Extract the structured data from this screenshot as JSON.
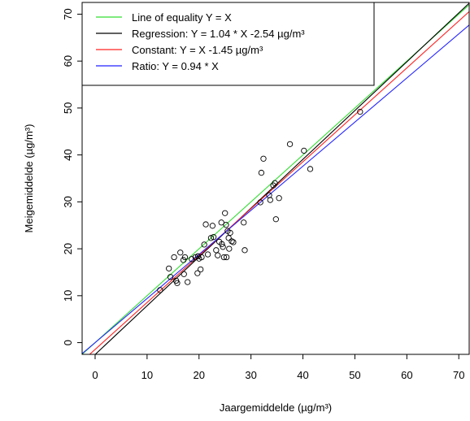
{
  "chart_data": {
    "type": "scatter",
    "xlabel": "Jaargemiddelde (µg/m³)",
    "ylabel": "Meigemiddelde (µg/m³)",
    "xlim": [
      -2.5,
      72
    ],
    "ylim": [
      -2.5,
      72.5
    ],
    "x_ticks": [
      0,
      10,
      20,
      30,
      40,
      50,
      60,
      70
    ],
    "y_ticks": [
      0,
      10,
      20,
      30,
      40,
      50,
      60,
      70
    ],
    "grid": false,
    "legend_position": "top-left",
    "points": [
      [
        12.5,
        11.2
      ],
      [
        14.2,
        15.8
      ],
      [
        14.5,
        14.0
      ],
      [
        15.2,
        18.2
      ],
      [
        15.6,
        13.2
      ],
      [
        15.8,
        12.7
      ],
      [
        16.4,
        19.2
      ],
      [
        17.0,
        17.6
      ],
      [
        17.3,
        18.2
      ],
      [
        17.1,
        14.6
      ],
      [
        17.8,
        12.9
      ],
      [
        18.6,
        17.8
      ],
      [
        19.3,
        18.2
      ],
      [
        19.8,
        18.4
      ],
      [
        20.0,
        17.9
      ],
      [
        19.7,
        14.8
      ],
      [
        20.3,
        15.6
      ],
      [
        20.5,
        18.2
      ],
      [
        21.0,
        20.9
      ],
      [
        21.3,
        25.2
      ],
      [
        21.7,
        18.8
      ],
      [
        22.3,
        22.3
      ],
      [
        22.6,
        24.9
      ],
      [
        22.8,
        22.5
      ],
      [
        23.3,
        19.7
      ],
      [
        23.6,
        18.6
      ],
      [
        23.9,
        21.5
      ],
      [
        24.4,
        21.0
      ],
      [
        24.3,
        25.6
      ],
      [
        24.6,
        20.4
      ],
      [
        24.8,
        18.2
      ],
      [
        25.0,
        27.6
      ],
      [
        25.2,
        25.1
      ],
      [
        25.5,
        23.8
      ],
      [
        25.7,
        22.3
      ],
      [
        25.8,
        20.0
      ],
      [
        26.0,
        23.4
      ],
      [
        26.3,
        21.6
      ],
      [
        26.6,
        21.4
      ],
      [
        25.3,
        18.2
      ],
      [
        28.6,
        25.6
      ],
      [
        28.8,
        19.7
      ],
      [
        31.8,
        29.9
      ],
      [
        32.0,
        36.2
      ],
      [
        32.4,
        39.2
      ],
      [
        33.5,
        31.4
      ],
      [
        33.7,
        30.4
      ],
      [
        34.3,
        33.5
      ],
      [
        34.6,
        34.0
      ],
      [
        34.8,
        26.3
      ],
      [
        35.4,
        30.8
      ],
      [
        37.5,
        42.3
      ],
      [
        40.2,
        40.9
      ],
      [
        41.4,
        37.0
      ],
      [
        51.0,
        49.2
      ]
    ],
    "lines": [
      {
        "name": "Line of equality Y = X",
        "color": "#33dd33",
        "slope": 1.0,
        "intercept": 0.0
      },
      {
        "name": "Regression: Y = 1.04 * X -2.54 µg/m³",
        "color": "#000000",
        "slope": 1.04,
        "intercept": -2.54
      },
      {
        "name": "Constant: Y = X -1.45 µg/m³",
        "color": "#ff2222",
        "slope": 1.0,
        "intercept": -1.45
      },
      {
        "name": "Ratio: Y = 0.94 * X",
        "color": "#2222ff",
        "slope": 0.94,
        "intercept": 0.0
      }
    ]
  }
}
